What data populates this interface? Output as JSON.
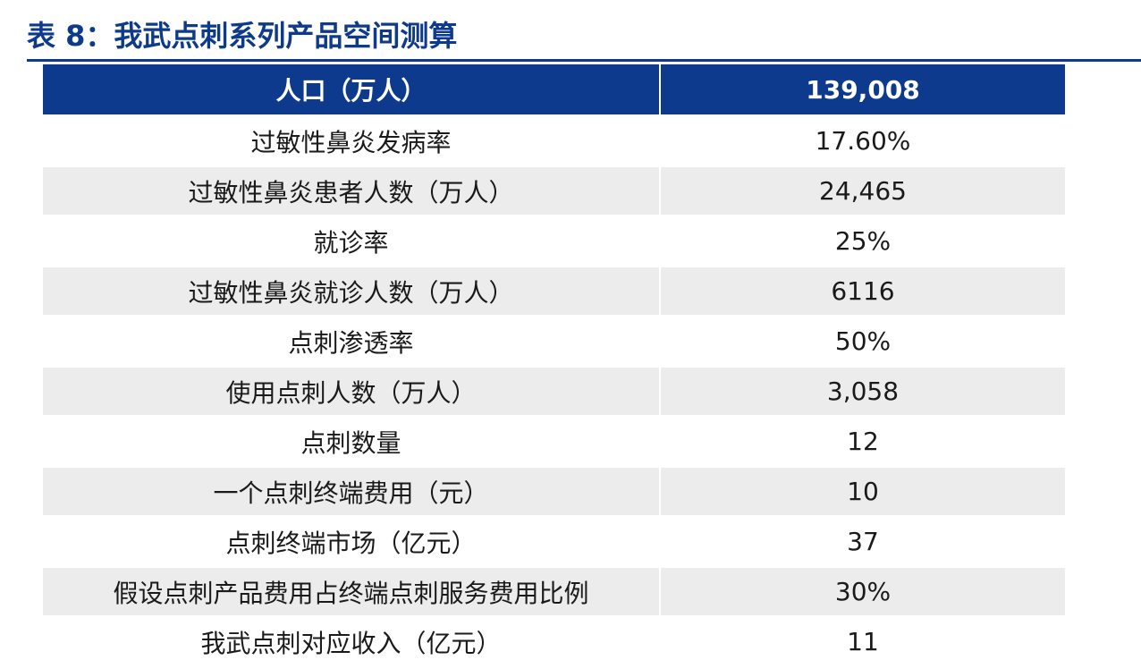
{
  "title": "表 8：我武点刺系列产品空间测算",
  "table": {
    "header": [
      "人口（万人）",
      "139,008"
    ],
    "rows": [
      [
        "过敏性鼻炎发病率",
        "17.60%"
      ],
      [
        "过敏性鼻炎患者人数（万人）",
        "24,465"
      ],
      [
        "就诊率",
        "25%"
      ],
      [
        "过敏性鼻炎就诊人数（万人）",
        "6116"
      ],
      [
        "点刺渗透率",
        "50%"
      ],
      [
        "使用点刺人数（万人）",
        "3,058"
      ],
      [
        "点刺数量",
        "12"
      ],
      [
        "一个点刺终端费用（元）",
        "10"
      ],
      [
        "点刺终端市场（亿元）",
        "37"
      ],
      [
        "假设点刺产品费用占终端点刺服务费用比例",
        "30%"
      ],
      [
        "我武点刺对应收入（亿元）",
        "11"
      ]
    ]
  },
  "colors": {
    "header_bg": "#0d3a8c",
    "header_text": "#ffffff",
    "stripe": "#ececec"
  }
}
